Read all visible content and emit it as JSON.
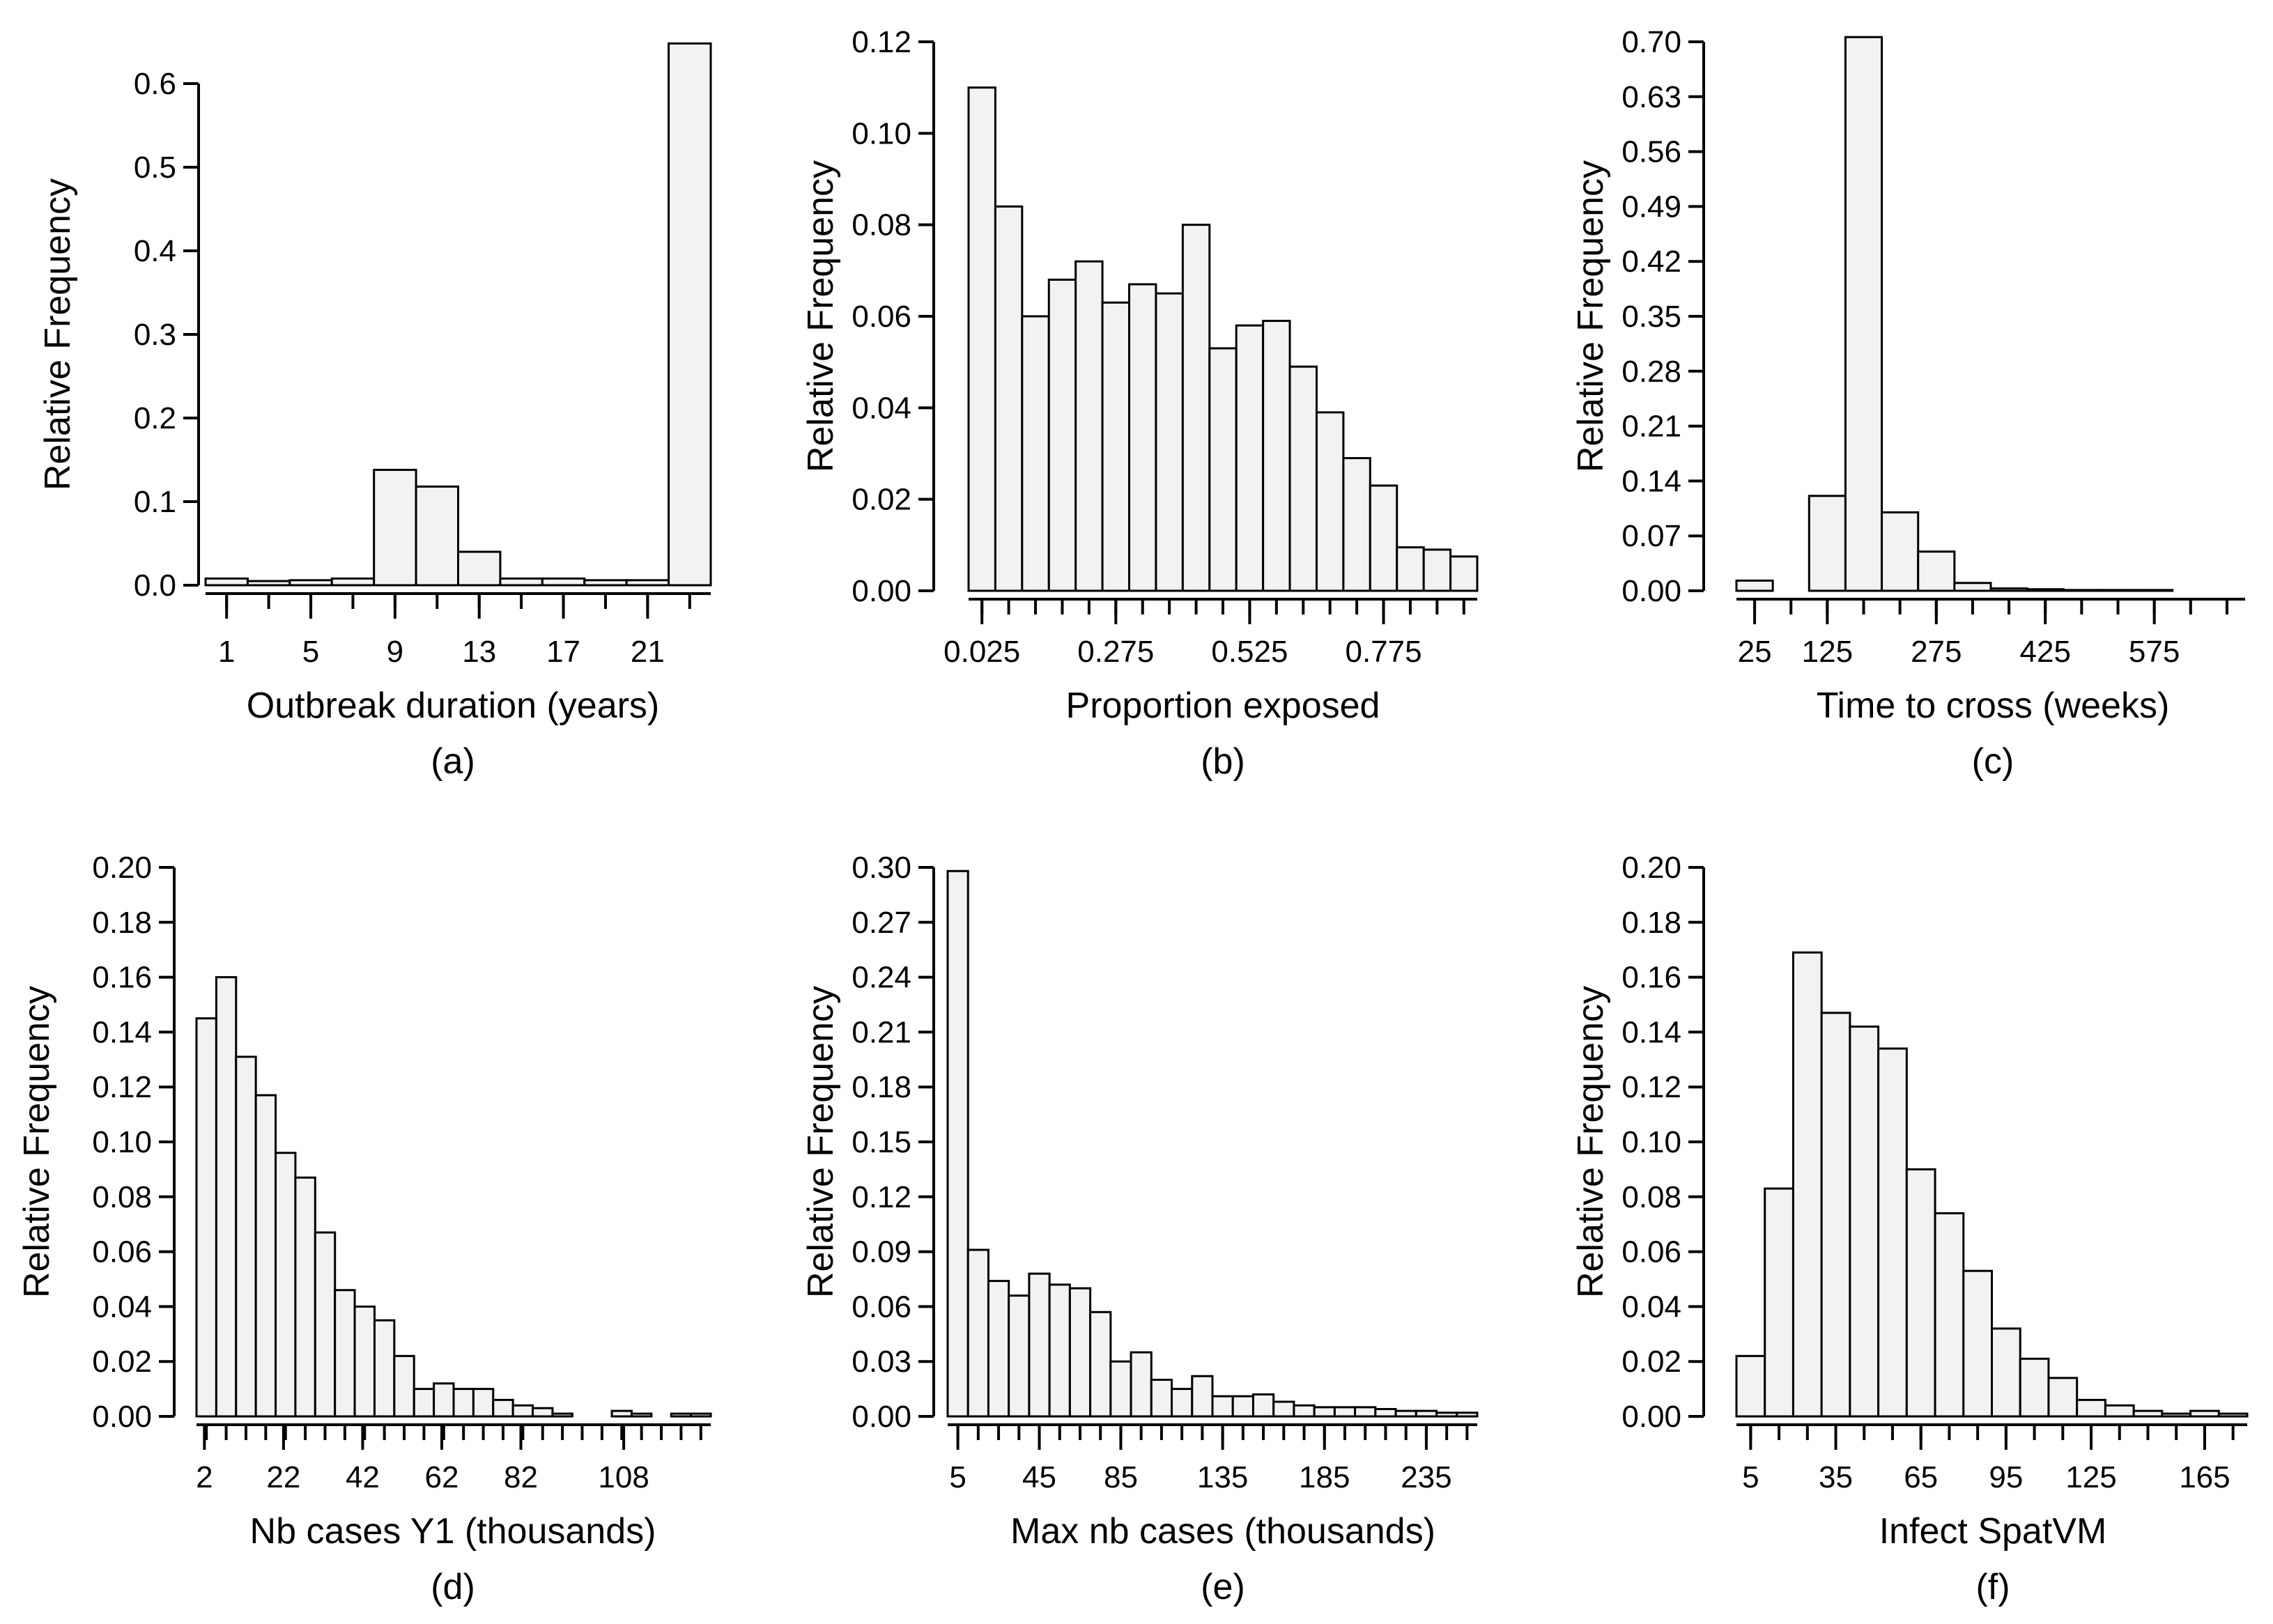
{
  "chart_data": [
    {
      "type": "bar",
      "panel_label": "(a)",
      "xlabel": "Outbreak duration (years)",
      "ylabel": "Relative Frequency",
      "ylim": [
        0,
        0.6
      ],
      "yticks": [
        "0.0",
        "0.1",
        "0.2",
        "0.3",
        "0.4",
        "0.5",
        "0.6"
      ],
      "x_ticks": [
        "1",
        "5",
        "9",
        "13",
        "17",
        "21"
      ],
      "bin_start": 0,
      "bin_width": 2,
      "values": [
        0.008,
        0.005,
        0.006,
        0.008,
        0.138,
        0.118,
        0.04,
        0.008,
        0.008,
        0.006,
        0.006,
        0.648
      ]
    },
    {
      "type": "bar",
      "panel_label": "(b)",
      "xlabel": "Proportion exposed",
      "ylabel": "Relative Frequency",
      "ylim": [
        0,
        0.12
      ],
      "yticks": [
        "0.00",
        "0.02",
        "0.04",
        "0.06",
        "0.08",
        "0.10",
        "0.12"
      ],
      "x_ticks": [
        "0.025",
        "0.275",
        "0.525",
        "0.775"
      ],
      "bin_start": 0,
      "bin_width": 0.05,
      "values": [
        0.11,
        0.084,
        0.06,
        0.068,
        0.072,
        0.063,
        0.067,
        0.065,
        0.08,
        0.053,
        0.058,
        0.059,
        0.049,
        0.039,
        0.029,
        0.023,
        0.0095,
        0.009,
        0.0075
      ]
    },
    {
      "type": "bar",
      "panel_label": "(c)",
      "xlabel": "Time to cross (weeks)",
      "ylabel": "Relative Frequency",
      "ylim": [
        0,
        0.7
      ],
      "yticks": [
        "0.00",
        "0.07",
        "0.14",
        "0.21",
        "0.28",
        "0.35",
        "0.42",
        "0.49",
        "0.56",
        "0.63",
        "0.70"
      ],
      "x_ticks": [
        "25",
        "125",
        "275",
        "425",
        "575"
      ],
      "bin_start": 0,
      "bin_width": 50,
      "values": [
        0.013,
        0.0,
        0.121,
        0.706,
        0.1,
        0.05,
        0.01,
        0.003,
        0.002,
        0.001,
        0.001,
        0.001,
        0.0,
        0.0
      ]
    },
    {
      "type": "bar",
      "panel_label": "(d)",
      "xlabel": "Nb cases Y1 (thousands)",
      "ylabel": "Relative Frequency",
      "ylim": [
        0,
        0.2
      ],
      "yticks": [
        "0.00",
        "0.02",
        "0.04",
        "0.06",
        "0.08",
        "0.10",
        "0.12",
        "0.14",
        "0.16",
        "0.18",
        "0.20"
      ],
      "x_ticks": [
        "2",
        "22",
        "42",
        "62",
        "82",
        "108"
      ],
      "bin_start": 0,
      "bin_width": 5,
      "values": [
        0.145,
        0.16,
        0.131,
        0.117,
        0.096,
        0.087,
        0.067,
        0.046,
        0.04,
        0.035,
        0.022,
        0.01,
        0.012,
        0.01,
        0.01,
        0.006,
        0.004,
        0.003,
        0.001,
        0.0,
        0.0,
        0.002,
        0.001,
        0.0,
        0.001,
        0.001
      ]
    },
    {
      "type": "bar",
      "panel_label": "(e)",
      "xlabel": "Max nb cases (thousands)",
      "ylabel": "Relative Frequency",
      "ylim": [
        0,
        0.3
      ],
      "yticks": [
        "0.00",
        "0.03",
        "0.06",
        "0.09",
        "0.12",
        "0.15",
        "0.18",
        "0.21",
        "0.24",
        "0.27",
        "0.30"
      ],
      "x_ticks": [
        "5",
        "45",
        "85",
        "135",
        "185",
        "235"
      ],
      "bin_start": 0,
      "bin_width": 10,
      "values": [
        0.298,
        0.091,
        0.074,
        0.066,
        0.078,
        0.072,
        0.07,
        0.057,
        0.03,
        0.035,
        0.02,
        0.015,
        0.022,
        0.011,
        0.011,
        0.012,
        0.008,
        0.006,
        0.005,
        0.005,
        0.005,
        0.004,
        0.003,
        0.003,
        0.002,
        0.002
      ]
    },
    {
      "type": "bar",
      "panel_label": "(f)",
      "xlabel": "Infect SpatVM",
      "ylabel": "Relative Frequency",
      "ylim": [
        0,
        0.2
      ],
      "yticks": [
        "0.00",
        "0.02",
        "0.04",
        "0.06",
        "0.08",
        "0.10",
        "0.12",
        "0.14",
        "0.16",
        "0.18",
        "0.20"
      ],
      "x_ticks": [
        "5",
        "35",
        "65",
        "95",
        "125",
        "165"
      ],
      "bin_start": 0,
      "bin_width": 10,
      "values": [
        0.022,
        0.083,
        0.169,
        0.147,
        0.142,
        0.134,
        0.09,
        0.074,
        0.053,
        0.032,
        0.021,
        0.014,
        0.006,
        0.004,
        0.002,
        0.001,
        0.002,
        0.001
      ]
    }
  ]
}
